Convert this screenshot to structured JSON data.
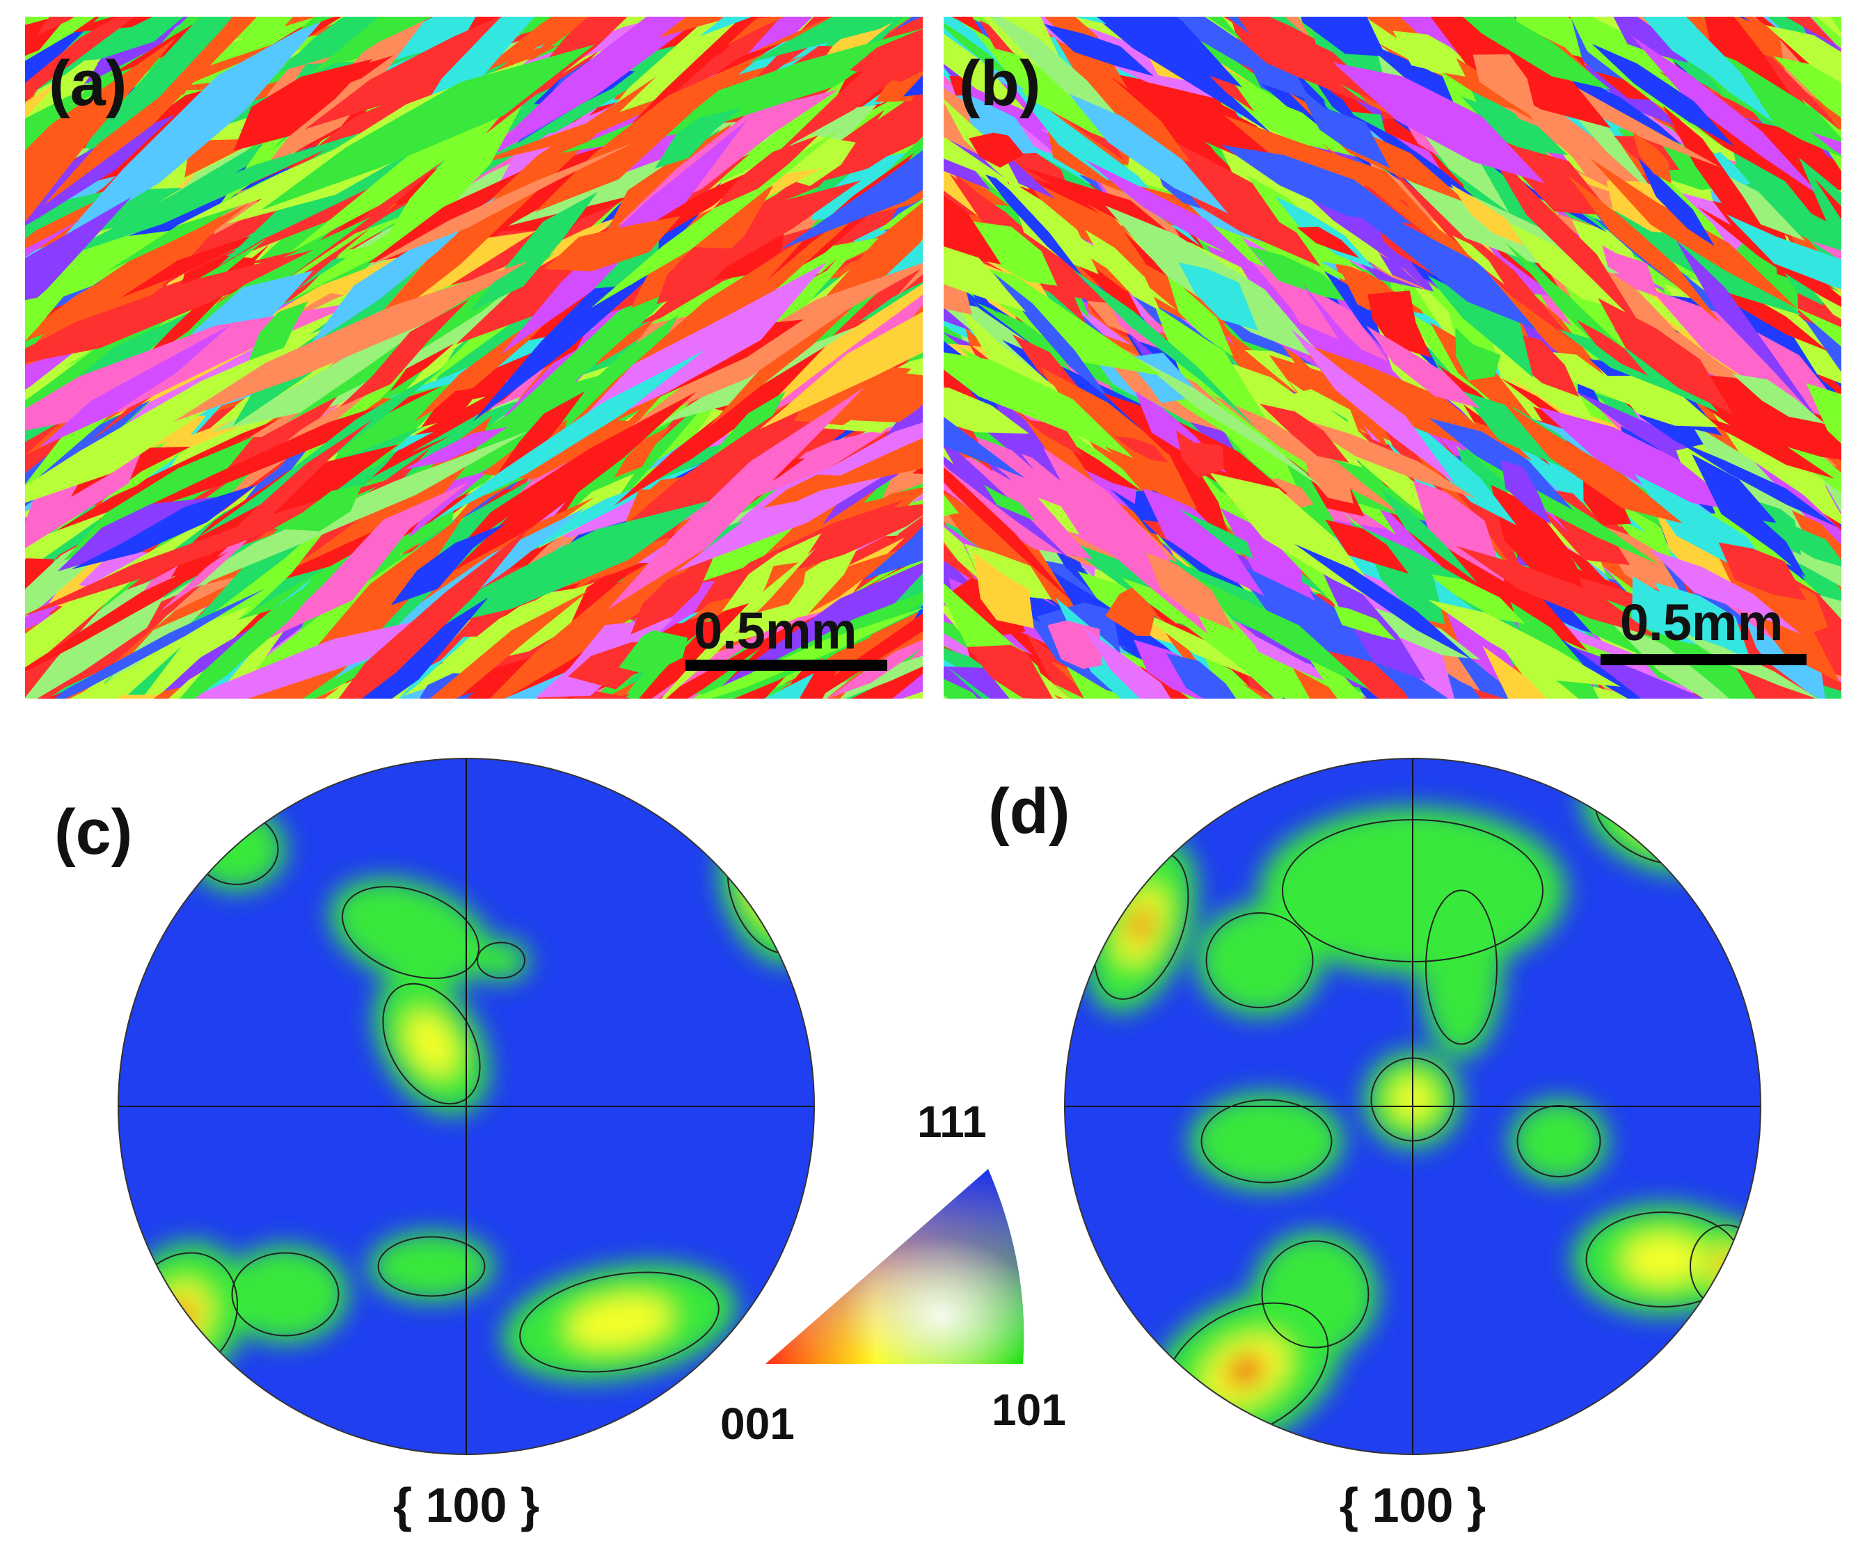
{
  "figure": {
    "panels": {
      "a": {
        "label": "(a)",
        "scale_text": "0.5mm"
      },
      "b": {
        "label": "(b)",
        "scale_text": "0.5mm"
      },
      "c": {
        "label": "(c)",
        "caption": "{ 100 }"
      },
      "d": {
        "label": "(d)",
        "caption": "{ 100 }"
      }
    },
    "ipf_key": {
      "corner_001": "001",
      "corner_101": "101",
      "corner_111": "111"
    },
    "colors": {
      "red": "#ff1a1a",
      "green": "#33ee22",
      "blue": "#1f3bff",
      "pf_background": "#1f3ff0",
      "pf_green": "#39e83a",
      "pf_yellow": "#f4ff2a",
      "pf_red": "#e81010"
    }
  }
}
